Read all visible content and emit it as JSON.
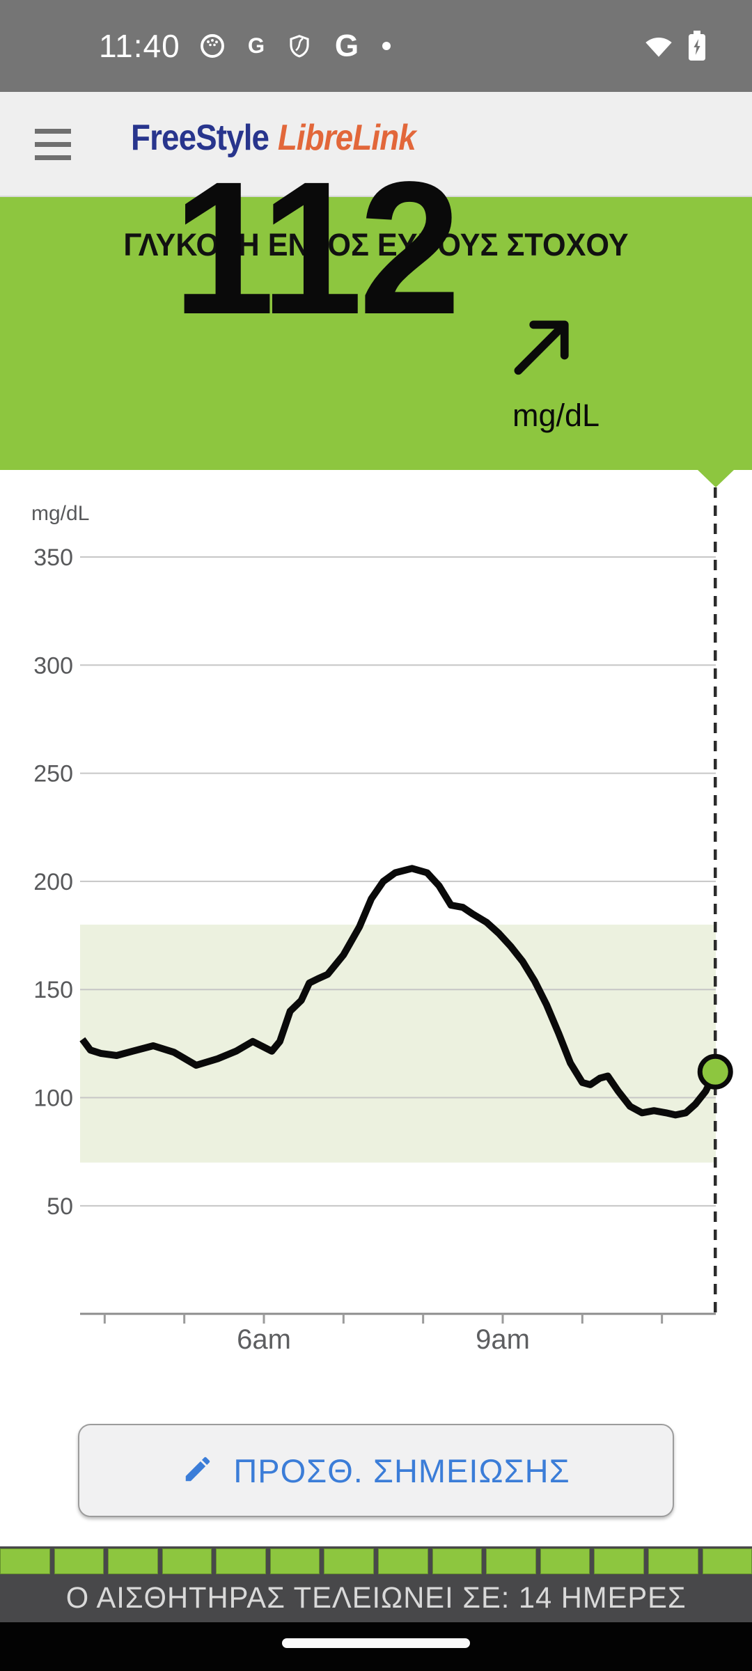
{
  "status_bar": {
    "time": "11:40",
    "icons": [
      "app-notification-round",
      "google-g",
      "shield",
      "google-g-large",
      "notification-dot"
    ],
    "right_icons": [
      "wifi-full",
      "battery-charging"
    ]
  },
  "header": {
    "brand_primary": "FreeStyle",
    "brand_secondary": "LibreLink"
  },
  "banner": {
    "title": "ΓΛΥΚΟΖΗ ΕΝΤΟΣ ΕΥΡΟΥΣ ΣΤΟΧΟΥ",
    "value": "112",
    "unit": "mg/dL",
    "trend_direction": "rising-diagonal-up-right",
    "background_color": "#8dc63f"
  },
  "chart_data": {
    "type": "line",
    "ylabel": "mg/dL",
    "ylim": [
      0,
      390
    ],
    "y_ticks": [
      50,
      100,
      150,
      200,
      250,
      300,
      350
    ],
    "x_unit": "hour-of-day",
    "xlim": [
      3.69,
      11.67
    ],
    "x_ticks": [
      {
        "hour": 4,
        "label": ""
      },
      {
        "hour": 5,
        "label": ""
      },
      {
        "hour": 6,
        "label": "6am"
      },
      {
        "hour": 7,
        "label": ""
      },
      {
        "hour": 8,
        "label": ""
      },
      {
        "hour": 9,
        "label": "9am"
      },
      {
        "hour": 10,
        "label": ""
      },
      {
        "hour": 11,
        "label": ""
      }
    ],
    "target_range": {
      "low": 70,
      "high": 180,
      "band_color": "#ecf1df"
    },
    "grid": "horizontal",
    "series": [
      {
        "name": "glucose",
        "color": "#0a0a0a",
        "points": [
          [
            3.72,
            127
          ],
          [
            3.82,
            122
          ],
          [
            3.95,
            120.5
          ],
          [
            4.15,
            119.5
          ],
          [
            4.35,
            121.5
          ],
          [
            4.61,
            124
          ],
          [
            4.87,
            121
          ],
          [
            5.15,
            115
          ],
          [
            5.42,
            118
          ],
          [
            5.65,
            121.5
          ],
          [
            5.86,
            126
          ],
          [
            6.1,
            121.5
          ],
          [
            6.2,
            126
          ],
          [
            6.33,
            140
          ],
          [
            6.47,
            145
          ],
          [
            6.57,
            153
          ],
          [
            6.68,
            155
          ],
          [
            6.8,
            157
          ],
          [
            7.0,
            166
          ],
          [
            7.2,
            179
          ],
          [
            7.35,
            192
          ],
          [
            7.5,
            200
          ],
          [
            7.65,
            204
          ],
          [
            7.86,
            206
          ],
          [
            8.05,
            204
          ],
          [
            8.2,
            198
          ],
          [
            8.35,
            189
          ],
          [
            8.5,
            188
          ],
          [
            8.62,
            185
          ],
          [
            8.8,
            181
          ],
          [
            8.95,
            176
          ],
          [
            9.1,
            170
          ],
          [
            9.25,
            163
          ],
          [
            9.4,
            154
          ],
          [
            9.55,
            143
          ],
          [
            9.7,
            130
          ],
          [
            9.85,
            116
          ],
          [
            10.0,
            107
          ],
          [
            10.1,
            106
          ],
          [
            10.22,
            109
          ],
          [
            10.32,
            110
          ],
          [
            10.45,
            103
          ],
          [
            10.6,
            96
          ],
          [
            10.75,
            93
          ],
          [
            10.9,
            94
          ],
          [
            11.05,
            93
          ],
          [
            11.17,
            92
          ],
          [
            11.3,
            93
          ],
          [
            11.42,
            97
          ],
          [
            11.55,
            103
          ],
          [
            11.67,
            112
          ]
        ]
      }
    ],
    "current": {
      "time": 11.67,
      "value": 112,
      "marker_color": "#8dc63f"
    }
  },
  "note_button": {
    "label": "ΠΡΟΣΘ. ΣΗΜΕΙΩΣΗΣ",
    "accent_color": "#3b7dd8"
  },
  "sensor": {
    "segments_total": 14,
    "segments_filled": 14,
    "message": "Ο ΑΙΣΘΗΤΗΡΑΣ ΤΕΛΕΙΩΝΕΙ ΣΕ: 14 ΗΜΕΡΕΣ"
  },
  "colors": {
    "status_bar": "#757575",
    "app_bar": "#efefef",
    "brand_navy": "#28358d",
    "brand_orange": "#e2673a",
    "banner_green": "#8dc63f",
    "target_band": "#ecf1df",
    "footer_gray": "#48484a",
    "button_blue": "#3b7dd8"
  }
}
